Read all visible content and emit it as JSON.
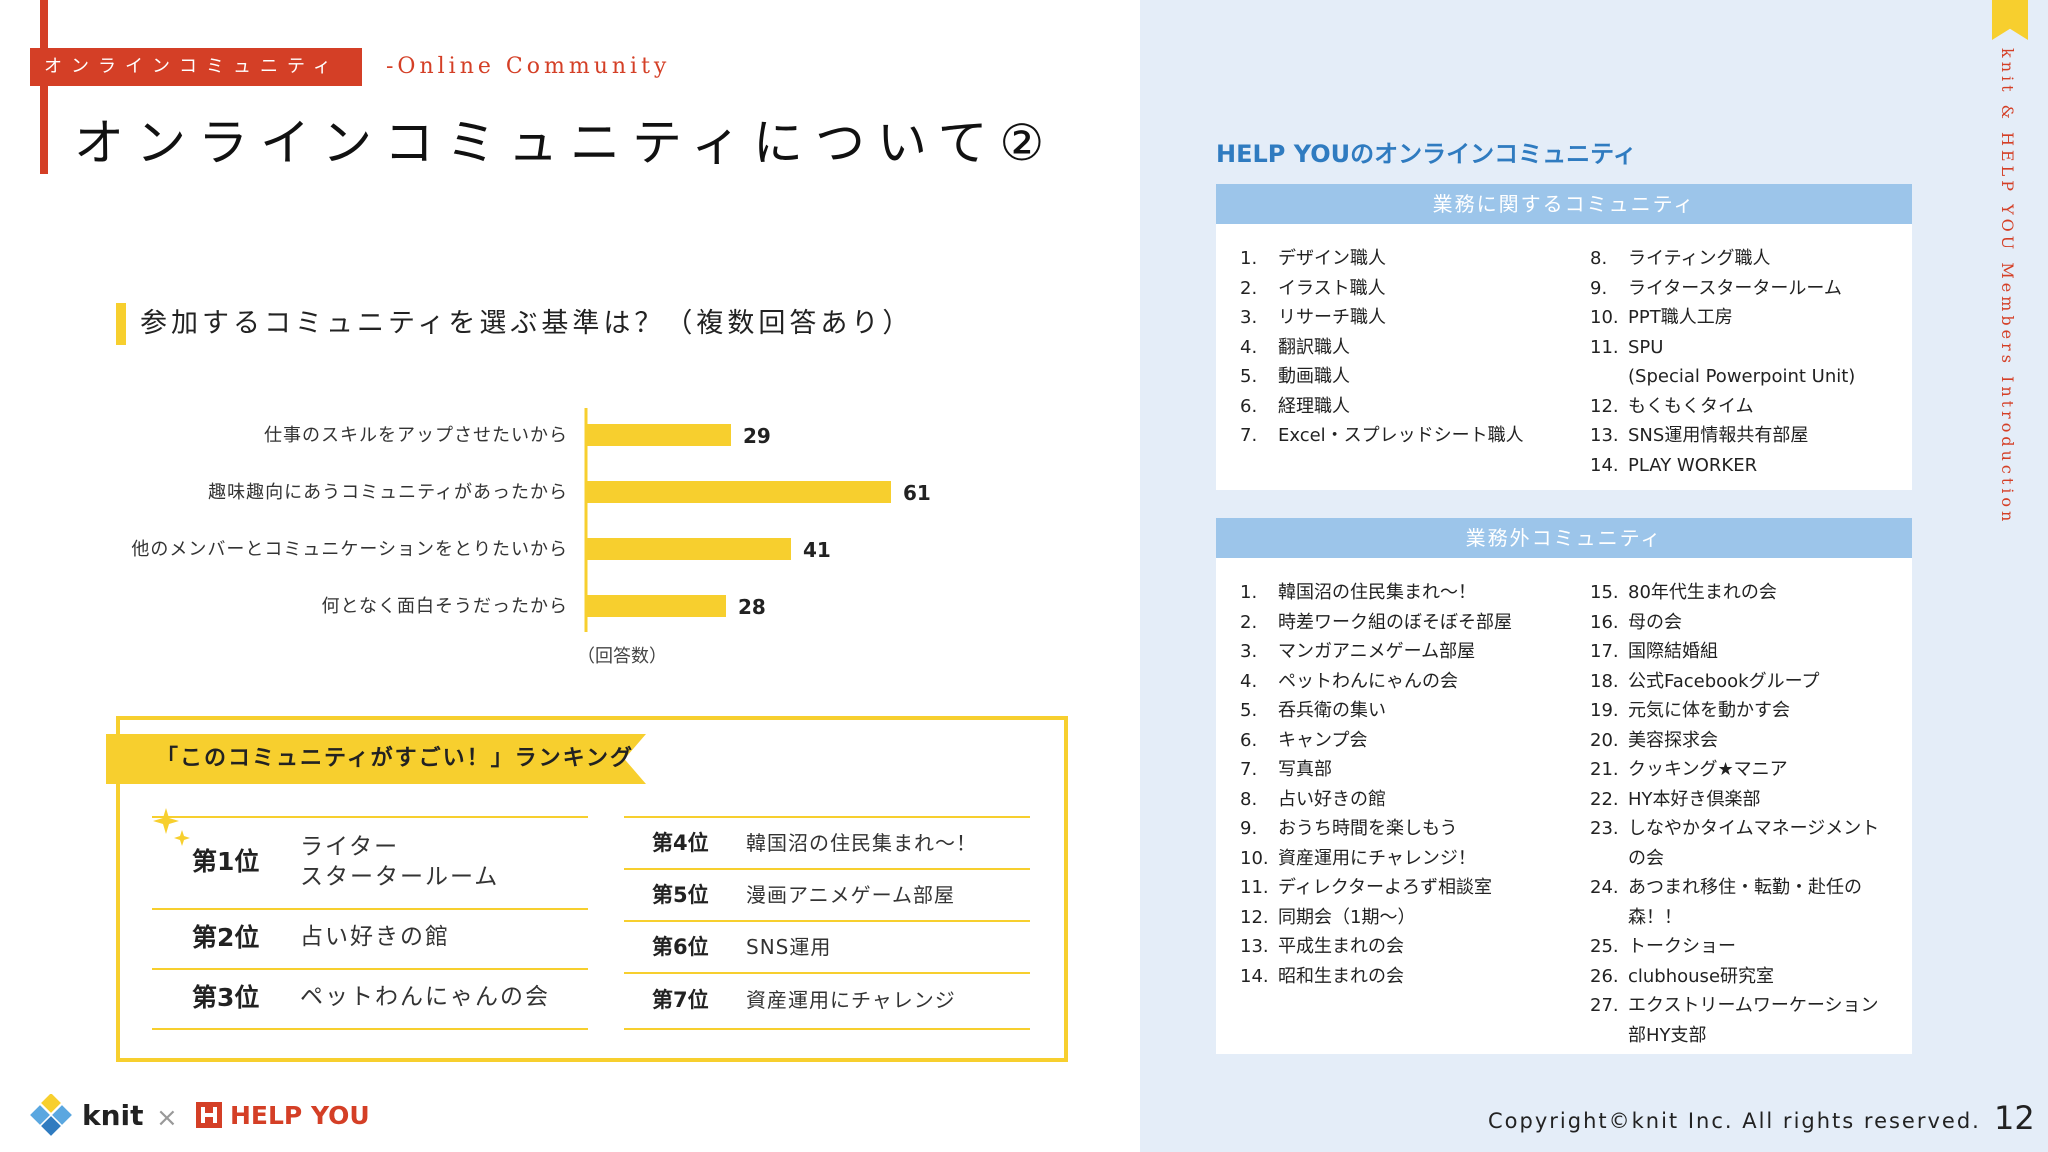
{
  "header": {
    "section_tag": "オンラインコミュニティ",
    "section_tag_en": "-Online Community",
    "title": "オンラインコミュニティについて②"
  },
  "question": {
    "text": "参加するコミュニティを選ぶ基準は？（複数回答あり）"
  },
  "chart_data": {
    "type": "bar",
    "orientation": "horizontal",
    "categories": [
      "仕事のスキルをアップさせたいから",
      "趣味趣向にあうコミュニティがあったから",
      "他のメンバーとコミュニケーションをとりたいから",
      "何となく面白そうだったから"
    ],
    "values": [
      29,
      61,
      41,
      28
    ],
    "xlabel": "（回答数）",
    "color": "#f7cf2e"
  },
  "ranking": {
    "title": "「このコミュニティがすごい！」ランキング",
    "left": [
      {
        "rank": "第1位",
        "name": "ライター\nスタータールーム"
      },
      {
        "rank": "第2位",
        "name": "占い好きの館"
      },
      {
        "rank": "第3位",
        "name": "ペットわんにゃんの会"
      }
    ],
    "right": [
      {
        "rank": "第4位",
        "name": "韓国沼の住民集まれ〜！"
      },
      {
        "rank": "第5位",
        "name": "漫画アニメゲーム部屋"
      },
      {
        "rank": "第6位",
        "name": "SNS運用"
      },
      {
        "rank": "第7位",
        "name": "資産運用にチャレンジ"
      }
    ]
  },
  "footer": {
    "knit_logo_text": "knit",
    "cross": "×",
    "helpyou_logo_text": "HELP YOU",
    "copyright": "Copyright©knit Inc. All rights reserved.",
    "page_number": "12"
  },
  "side_label": "knit & HELP YOU Members Introduction",
  "communities": {
    "heading": "HELP YOUのオンラインコミュニティ",
    "work": {
      "title": "業務に関するコミュニティ",
      "col1": [
        {
          "num": "1.",
          "name": "デザイン職人"
        },
        {
          "num": "2.",
          "name": "イラスト職人"
        },
        {
          "num": "3.",
          "name": "リサーチ職人"
        },
        {
          "num": "4.",
          "name": "翻訳職人"
        },
        {
          "num": "5.",
          "name": "動画職人"
        },
        {
          "num": "6.",
          "name": "経理職人"
        },
        {
          "num": "7.",
          "name": "Excel・スプレッドシート職人"
        }
      ],
      "col2": [
        {
          "num": "8.",
          "name": "ライティング職人"
        },
        {
          "num": "9.",
          "name": "ライタースタータールーム"
        },
        {
          "num": "10.",
          "name": "PPT職人工房"
        },
        {
          "num": "11.",
          "name": "SPU\n  (Special Powerpoint Unit)"
        },
        {
          "num": "12.",
          "name": "もくもくタイム"
        },
        {
          "num": "13.",
          "name": "SNS運用情報共有部屋"
        },
        {
          "num": "14.",
          "name": "PLAY WORKER"
        }
      ]
    },
    "nonwork": {
      "title": "業務外コミュニティ",
      "col1": [
        {
          "num": "1.",
          "name": "韓国沼の住民集まれ〜！"
        },
        {
          "num": "2.",
          "name": "時差ワーク組のぼそぼそ部屋"
        },
        {
          "num": "3.",
          "name": "マンガアニメゲーム部屋"
        },
        {
          "num": "4.",
          "name": "ペットわんにゃんの会"
        },
        {
          "num": "5.",
          "name": "呑兵衛の集い"
        },
        {
          "num": "6.",
          "name": "キャンプ会"
        },
        {
          "num": "7.",
          "name": "写真部"
        },
        {
          "num": "8.",
          "name": "占い好きの館"
        },
        {
          "num": "9.",
          "name": "おうち時間を楽しもう"
        },
        {
          "num": "10.",
          "name": "資産運用にチャレンジ！"
        },
        {
          "num": "11.",
          "name": "ディレクターよろず相談室"
        },
        {
          "num": "12.",
          "name": "同期会（1期〜）"
        },
        {
          "num": "13.",
          "name": "平成生まれの会"
        },
        {
          "num": "14.",
          "name": "昭和生まれの会"
        }
      ],
      "col2": [
        {
          "num": "15.",
          "name": "80年代生まれの会"
        },
        {
          "num": "16.",
          "name": "母の会"
        },
        {
          "num": "17.",
          "name": "国際結婚組"
        },
        {
          "num": "18.",
          "name": "公式Facebookグループ"
        },
        {
          "num": "19.",
          "name": "元気に体を動かす会"
        },
        {
          "num": "20.",
          "name": "美容探求会"
        },
        {
          "num": "21.",
          "name": "クッキング★マニア"
        },
        {
          "num": "22.",
          "name": "HY本好き倶楽部"
        },
        {
          "num": "23.",
          "name": "しなやかタイムマネージメント\nの会"
        },
        {
          "num": "24.",
          "name": "あつまれ移住・転勤・赴任の\n森！！"
        },
        {
          "num": "25.",
          "name": "トークショー"
        },
        {
          "num": "26.",
          "name": "clubhouse研究室"
        },
        {
          "num": "27.",
          "name": "エクストリームワーケーション\n部HY支部"
        }
      ]
    }
  },
  "colors": {
    "accent_red": "#d43f26",
    "accent_yellow": "#f7cf2e",
    "panel_blue": "#e4edf8",
    "header_blue": "#9cc5ea",
    "heading_blue": "#2f7bc0"
  }
}
